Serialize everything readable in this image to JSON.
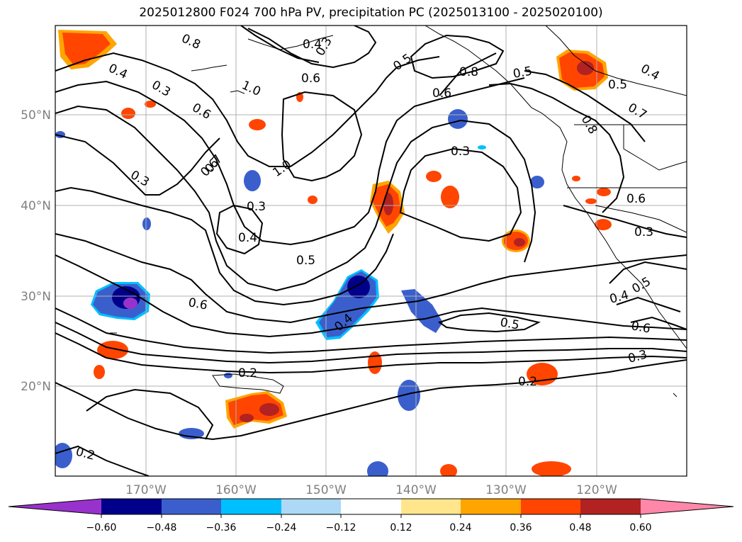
{
  "title": "2025012800 F024 700 hPa PV, precipitation PC (2025013100 - 2025020100)",
  "map": {
    "lat_labels": [
      "50°N",
      "40°N",
      "30°N",
      "20°N"
    ],
    "lon_labels": [
      "170°W",
      "160°W",
      "150°W",
      "140°W",
      "130°W",
      "120°W"
    ],
    "gridlines": true,
    "contour_labels": [
      "0.8",
      "0.4",
      "0.4",
      "0.3",
      "0.3",
      "0.5",
      "0.6",
      "1.0",
      "0.6",
      "0.8",
      "0.5",
      "0.6",
      "0.4",
      "0.5",
      "0.7",
      "0.6",
      "0.3",
      "0.8",
      "0.7",
      "1.0",
      "0.3",
      "0.3",
      "0.4",
      "0.5",
      "0.6",
      "0.3",
      "0.6",
      "0.4",
      "0.4",
      "0.5",
      "0.6",
      "0.5",
      "0.2",
      "0.3",
      "0.2",
      "0.2"
    ]
  },
  "colorbar": {
    "ticks": [
      "−0.60",
      "−0.48",
      "−0.36",
      "−0.24",
      "−0.12",
      "0.12",
      "0.24",
      "0.36",
      "0.48",
      "0.60"
    ],
    "colors": [
      "#9932cc",
      "#00008b",
      "#3a5fcd",
      "#00bfff",
      "#add8f6",
      "#ffffff",
      "#ffe68c",
      "#ffa500",
      "#ff4500",
      "#b22222",
      "#ff88aa"
    ]
  }
}
